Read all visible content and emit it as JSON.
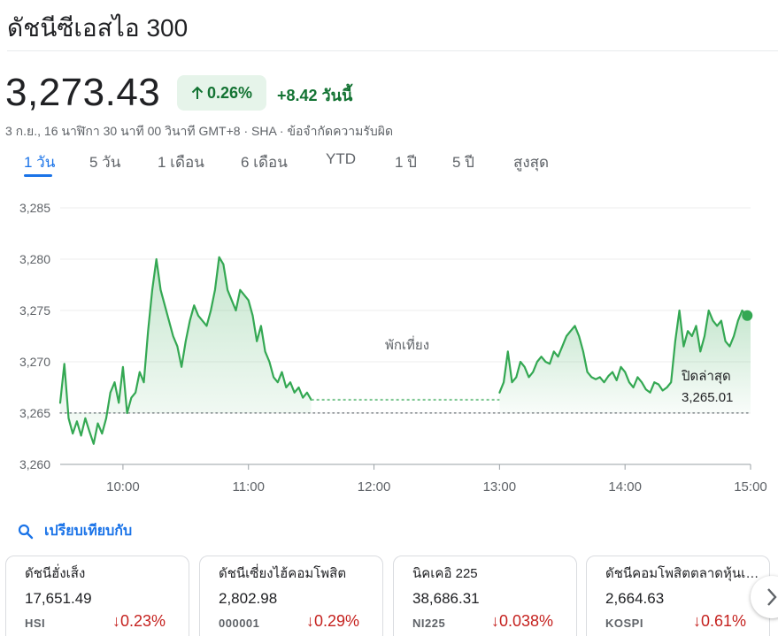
{
  "header": {
    "title": "ดัชนีซีเอสไอ 300",
    "price": "3,273.43",
    "change_pct": "0.26%",
    "change_abs": "+8.42 วันนี้",
    "meta": "3 ก.ย., 16 นาฬิกา 30 นาที 00 วินาที GMT+8 · SHA · ข้อจำกัดความรับผิด"
  },
  "tabs": [
    "1 วัน",
    "5 วัน",
    "1 เดือน",
    "6 เดือน",
    "YTD",
    "1 ปี",
    "5 ปี",
    "สูงสุด"
  ],
  "colors": {
    "up_green": "#137333",
    "line_green": "#34a853",
    "down_red": "#c5221f",
    "accent_blue": "#1a73e8"
  },
  "chart_data": {
    "type": "area",
    "x_unit": "time (HH:MM)",
    "xlim": [
      "09:30",
      "15:00"
    ],
    "ylim": [
      3260,
      3285
    ],
    "y_ticks": [
      "3,285",
      "3,280",
      "3,275",
      "3,270",
      "3,265",
      "3,260"
    ],
    "x_ticks": [
      "10:00",
      "11:00",
      "12:00",
      "13:00",
      "14:00",
      "15:00"
    ],
    "previous_close": 3265.01,
    "previous_close_label": "ปิดล่าสุด",
    "previous_close_value_label": "3,265.01",
    "break_label": "พักเที่ยง",
    "grid": true,
    "morning_series": {
      "x": [
        "09:30",
        "09:32",
        "09:34",
        "09:36",
        "09:38",
        "09:40",
        "09:42",
        "09:44",
        "09:46",
        "09:48",
        "09:50",
        "09:52",
        "09:54",
        "09:56",
        "09:58",
        "10:00",
        "10:02",
        "10:04",
        "10:06",
        "10:08",
        "10:10",
        "10:12",
        "10:14",
        "10:16",
        "10:18",
        "10:20",
        "10:22",
        "10:24",
        "10:26",
        "10:28",
        "10:30",
        "10:32",
        "10:34",
        "10:36",
        "10:38",
        "10:40",
        "10:42",
        "10:44",
        "10:46",
        "10:48",
        "10:50",
        "10:52",
        "10:54",
        "10:56",
        "10:58",
        "11:00",
        "11:02",
        "11:04",
        "11:06",
        "11:08",
        "11:10",
        "11:12",
        "11:14",
        "11:16",
        "11:18",
        "11:20",
        "11:22",
        "11:24",
        "11:26",
        "11:28",
        "11:30"
      ],
      "y": [
        3266.0,
        3269.8,
        3264.5,
        3263.0,
        3264.2,
        3262.8,
        3264.5,
        3263.2,
        3262.0,
        3264.0,
        3263.0,
        3264.5,
        3267.0,
        3268.0,
        3266.0,
        3269.5,
        3265.0,
        3266.5,
        3267.0,
        3269.0,
        3268.0,
        3273.0,
        3277.0,
        3280.0,
        3277.0,
        3275.5,
        3274.0,
        3272.5,
        3271.5,
        3269.5,
        3272.0,
        3274.0,
        3275.5,
        3274.5,
        3274.0,
        3273.5,
        3275.0,
        3277.0,
        3280.2,
        3279.5,
        3277.0,
        3276.0,
        3275.0,
        3277.0,
        3276.5,
        3276.0,
        3274.5,
        3272.0,
        3273.5,
        3271.0,
        3270.0,
        3268.5,
        3268.0,
        3269.0,
        3267.5,
        3268.0,
        3267.0,
        3267.5,
        3266.5,
        3267.0,
        3266.3
      ]
    },
    "afternoon_series": {
      "x": [
        "13:00",
        "13:02",
        "13:04",
        "13:06",
        "13:08",
        "13:10",
        "13:12",
        "13:14",
        "13:16",
        "13:18",
        "13:20",
        "13:22",
        "13:24",
        "13:26",
        "13:28",
        "13:30",
        "13:32",
        "13:34",
        "13:36",
        "13:38",
        "13:40",
        "13:42",
        "13:44",
        "13:46",
        "13:48",
        "13:50",
        "13:52",
        "13:54",
        "13:56",
        "13:58",
        "14:00",
        "14:02",
        "14:04",
        "14:06",
        "14:08",
        "14:10",
        "14:12",
        "14:14",
        "14:16",
        "14:18",
        "14:20",
        "14:22",
        "14:24",
        "14:26",
        "14:28",
        "14:30",
        "14:32",
        "14:34",
        "14:36",
        "14:38",
        "14:40",
        "14:42",
        "14:44",
        "14:46",
        "14:48",
        "14:50",
        "14:52",
        "14:54",
        "14:56",
        "14:58",
        "15:00"
      ],
      "y": [
        3267.0,
        3268.0,
        3271.0,
        3268.0,
        3268.5,
        3270.0,
        3269.5,
        3268.5,
        3269.0,
        3270.0,
        3270.5,
        3270.0,
        3269.8,
        3271.0,
        3270.5,
        3271.5,
        3272.5,
        3273.0,
        3273.5,
        3272.5,
        3271.0,
        3269.0,
        3268.5,
        3268.3,
        3268.5,
        3268.0,
        3268.6,
        3269.0,
        3268.2,
        3269.5,
        3269.0,
        3268.0,
        3267.5,
        3268.5,
        3268.0,
        3267.3,
        3267.0,
        3268.0,
        3267.8,
        3267.2,
        3267.5,
        3268.0,
        3272.0,
        3275.0,
        3271.5,
        3273.0,
        3272.5,
        3273.5,
        3271.0,
        3272.5,
        3275.0,
        3274.0,
        3273.5,
        3274.0,
        3272.0,
        3271.5,
        3272.5,
        3274.0,
        3275.0,
        3274.5,
        3274.5
      ]
    },
    "last_point": {
      "x": "14:58",
      "y": 3274.5
    }
  },
  "compare": {
    "label": "เปรียบเทียบกับ"
  },
  "cards": [
    {
      "name": "ดัชนีฮั่งเส็ง",
      "value": "17,651.49",
      "symbol": "HSI",
      "change": "0.23%"
    },
    {
      "name": "ดัชนีเซี่ยงไฮ้คอมโพสิต",
      "value": "2,802.98",
      "symbol": "000001",
      "change": "0.29%"
    },
    {
      "name": "นิคเคอิ 225",
      "value": "38,686.31",
      "symbol": "NI225",
      "change": "0.038%"
    },
    {
      "name": "ดัชนีคอมโพสิตตลาดหุ้นเกาหลี",
      "value": "2,664.63",
      "symbol": "KOSPI",
      "change": "0.61%"
    }
  ]
}
